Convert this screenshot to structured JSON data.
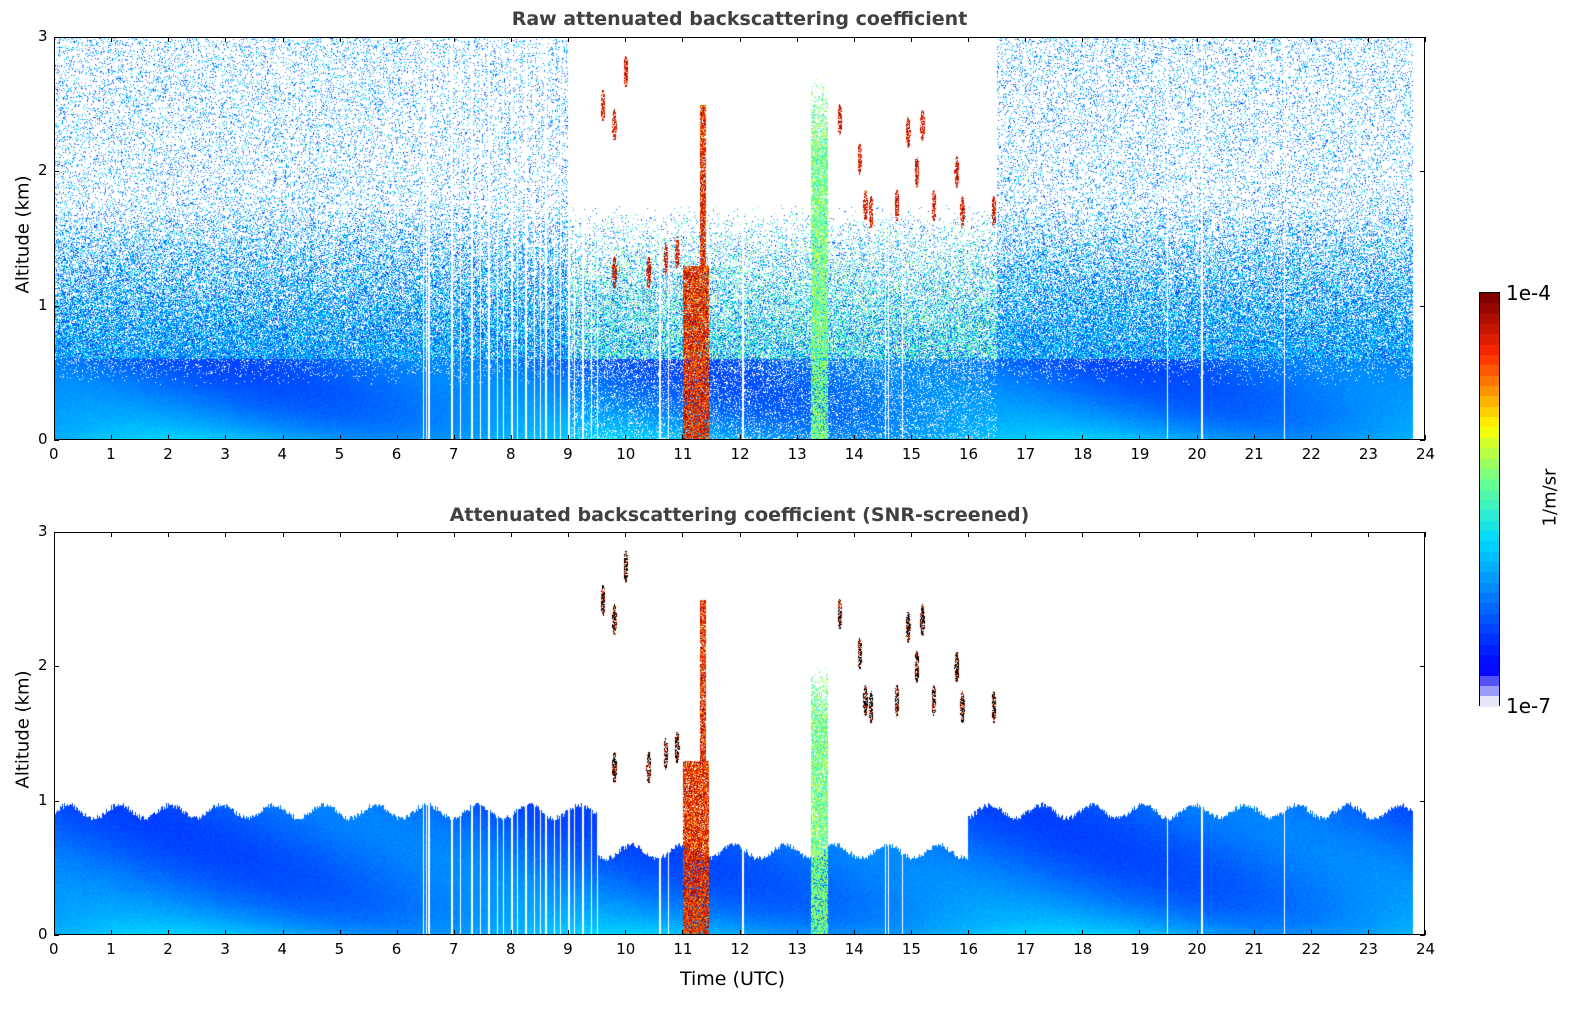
{
  "chart_data": {
    "type": "heatmap",
    "panels": [
      {
        "title": "Raw attenuated backscattering coefficient",
        "ylabel": "Altitude (km)",
        "xlabel": "",
        "xlim": [
          0,
          24
        ],
        "ylim": [
          0,
          3
        ],
        "xticks": [
          "0",
          "1",
          "2",
          "3",
          "4",
          "5",
          "6",
          "7",
          "8",
          "9",
          "10",
          "11",
          "12",
          "13",
          "14",
          "15",
          "16",
          "17",
          "18",
          "19",
          "20",
          "21",
          "22",
          "23",
          "24"
        ],
        "yticks": [
          "0",
          "1",
          "2",
          "3"
        ],
        "screened": false
      },
      {
        "title": "Attenuated backscattering coefficient (SNR-screened)",
        "ylabel": "Altitude (km)",
        "xlabel": "Time (UTC)",
        "xlim": [
          0,
          24
        ],
        "ylim": [
          0,
          3
        ],
        "xticks": [
          "0",
          "1",
          "2",
          "3",
          "4",
          "5",
          "6",
          "7",
          "8",
          "9",
          "10",
          "11",
          "12",
          "13",
          "14",
          "15",
          "16",
          "17",
          "18",
          "19",
          "20",
          "21",
          "22",
          "23",
          "24"
        ],
        "yticks": [
          "0",
          "1",
          "2",
          "3"
        ],
        "screened": true
      }
    ],
    "colorbar": {
      "label": "1/m/sr",
      "max_label": "1e-4",
      "min_label": "1e-7",
      "scale": "log",
      "range": [
        1e-07,
        0.0001
      ]
    },
    "data_end_hour": 23.8,
    "data_gaps_hours": [
      6.45,
      6.5,
      6.55,
      6.95,
      7.1,
      7.3,
      7.45,
      7.6,
      7.75,
      7.85,
      8.0,
      8.1,
      8.25,
      8.4,
      8.5,
      8.6,
      8.75,
      8.85,
      9.0,
      9.1,
      9.25,
      9.4,
      9.5,
      10.6,
      10.75,
      12.05,
      14.55,
      14.6,
      14.85,
      19.5,
      20.1,
      21.55
    ],
    "precipitation": [
      {
        "start": 11.0,
        "end": 11.45,
        "top_km": 2.5
      }
    ],
    "aerosol_layer": [
      {
        "start": 13.25,
        "end": 13.55,
        "top_km": 2.7
      }
    ],
    "boundary_layer_top_km": {
      "night": 0.9,
      "day": 0.6
    },
    "clouds": [
      {
        "t": 9.6,
        "alt": 2.5
      },
      {
        "t": 9.8,
        "alt": 2.35
      },
      {
        "t": 10.0,
        "alt": 2.75
      },
      {
        "t": 10.4,
        "alt": 1.25
      },
      {
        "t": 10.7,
        "alt": 1.35
      },
      {
        "t": 10.9,
        "alt": 1.4
      },
      {
        "t": 9.8,
        "alt": 1.25
      },
      {
        "t": 13.75,
        "alt": 2.4
      },
      {
        "t": 14.1,
        "alt": 2.1
      },
      {
        "t": 14.2,
        "alt": 1.75
      },
      {
        "t": 14.3,
        "alt": 1.7
      },
      {
        "t": 14.95,
        "alt": 2.3
      },
      {
        "t": 15.1,
        "alt": 2.0
      },
      {
        "t": 15.2,
        "alt": 2.35
      },
      {
        "t": 15.4,
        "alt": 1.75
      },
      {
        "t": 15.8,
        "alt": 2.0
      },
      {
        "t": 15.9,
        "alt": 1.7
      },
      {
        "t": 16.45,
        "alt": 1.7
      },
      {
        "t": 14.75,
        "alt": 1.75
      }
    ]
  }
}
